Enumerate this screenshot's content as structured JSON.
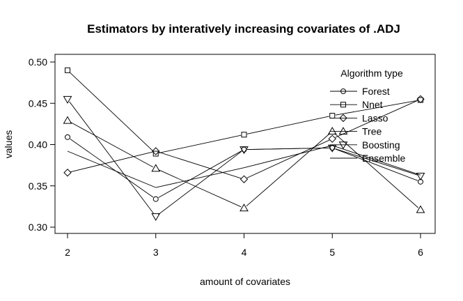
{
  "chart_data": {
    "type": "line",
    "title": "Estimators by interatively increasing covariates of .ADJ",
    "xlabel": "amount of covariates",
    "ylabel": "values",
    "x": [
      2,
      3,
      4,
      5,
      6
    ],
    "xlim": [
      2,
      6
    ],
    "ylim": [
      0.3,
      0.5
    ],
    "yticks": [
      0.3,
      0.35,
      0.4,
      0.45,
      0.5
    ],
    "ytick_labels": [
      "0.30",
      "0.35",
      "0.40",
      "0.45",
      "0.50"
    ],
    "xtick_labels": [
      "2",
      "3",
      "4",
      "5",
      "6"
    ],
    "grid": false,
    "legend": {
      "title": "Algorithm type",
      "placement": "top-right"
    },
    "series": [
      {
        "name": "Forest",
        "marker": "circle",
        "values": [
          0.409,
          0.334,
          0.394,
          0.396,
          0.355
        ]
      },
      {
        "name": "Nnet",
        "marker": "square",
        "values": [
          0.49,
          0.389,
          0.412,
          0.435,
          0.454
        ]
      },
      {
        "name": "Lasso",
        "marker": "diamond",
        "values": [
          0.366,
          0.392,
          0.358,
          0.407,
          0.455
        ]
      },
      {
        "name": "Tree",
        "marker": "triangle-up",
        "values": [
          0.429,
          0.371,
          0.323,
          0.416,
          0.321
        ]
      },
      {
        "name": "Boosting",
        "marker": "triangle-down",
        "values": [
          0.455,
          0.313,
          0.394,
          0.396,
          0.362
        ]
      },
      {
        "name": "Ensemble",
        "marker": "none",
        "values": [
          0.392,
          0.348,
          0.372,
          0.399,
          0.363
        ]
      }
    ]
  }
}
